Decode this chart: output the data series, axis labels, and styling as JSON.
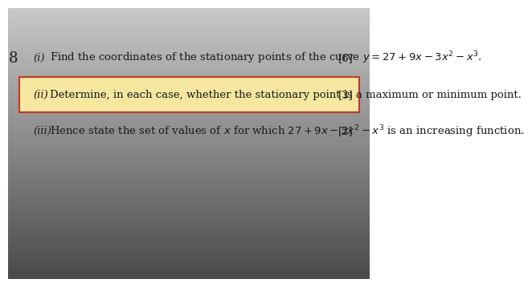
{
  "question_number": "8",
  "parts": [
    {
      "label": "(i)",
      "text": "Find the coordinates of the stationary points of the curve $y = 27 + 9x - 3x^2 - x^3$.",
      "marks": "[6]",
      "highlight": false
    },
    {
      "label": "(ii)",
      "text": "Determine, in each case, whether the stationary point is a maximum or minimum point.",
      "marks": "[3]",
      "highlight": true
    },
    {
      "label": "(iii)",
      "text": "Hence state the set of values of $x$ for which $27 + 9x - 3x^2 - x^3$ is an increasing function.",
      "marks": "[2]",
      "highlight": false
    }
  ],
  "bg_top": "#c8c8c8",
  "bg_bottom": "#4a4a4a",
  "highlight_color": "#f5e6a0",
  "highlight_border": "#c0392b",
  "text_color": "#1a1a1a",
  "font_size": 9.5,
  "q_num_font_size": 13
}
